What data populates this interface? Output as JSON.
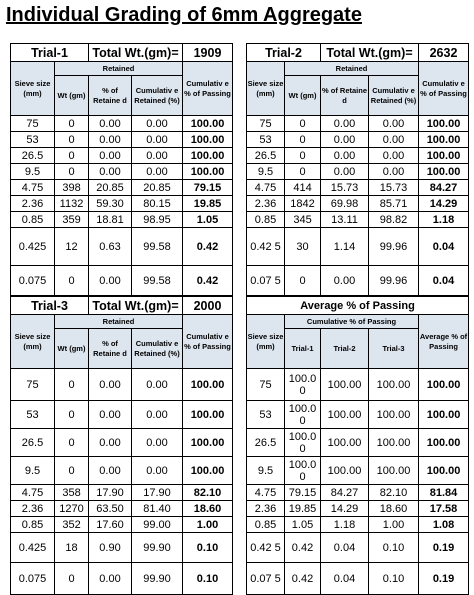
{
  "title": "Individual Grading of 6mm Aggregate",
  "headers": {
    "sieve_size": "Sieve size (mm)",
    "retained": "Retained",
    "wt": "Wt (gm)",
    "pct_retained": "% of Retaine d",
    "cum_retained": "Cumulativ e Retained (%)",
    "cum_passing": "Cumulativ e % of Passing",
    "total_wt_label": "Total Wt.(gm)="
  },
  "trial1": {
    "label": "Trial-1",
    "total": "1909",
    "rows": [
      [
        "75",
        "0",
        "0.00",
        "0.00",
        "100.00"
      ],
      [
        "53",
        "0",
        "0.00",
        "0.00",
        "100.00"
      ],
      [
        "26.5",
        "0",
        "0.00",
        "0.00",
        "100.00"
      ],
      [
        "9.5",
        "0",
        "0.00",
        "0.00",
        "100.00"
      ],
      [
        "4.75",
        "398",
        "20.85",
        "20.85",
        "79.15"
      ],
      [
        "2.36",
        "1132",
        "59.30",
        "80.15",
        "19.85"
      ],
      [
        "0.85",
        "359",
        "18.81",
        "98.95",
        "1.05"
      ],
      [
        "0.425",
        "12",
        "0.63",
        "99.58",
        "0.42"
      ],
      [
        "0.075",
        "0",
        "0.00",
        "99.58",
        "0.42"
      ]
    ]
  },
  "trial2": {
    "label": "Trial-2",
    "total": "2632",
    "rows": [
      [
        "75",
        "0",
        "0.00",
        "0.00",
        "100.00"
      ],
      [
        "53",
        "0",
        "0.00",
        "0.00",
        "100.00"
      ],
      [
        "26.5",
        "0",
        "0.00",
        "0.00",
        "100.00"
      ],
      [
        "9.5",
        "0",
        "0.00",
        "0.00",
        "100.00"
      ],
      [
        "4.75",
        "414",
        "15.73",
        "15.73",
        "84.27"
      ],
      [
        "2.36",
        "1842",
        "69.98",
        "85.71",
        "14.29"
      ],
      [
        "0.85",
        "345",
        "13.11",
        "98.82",
        "1.18"
      ],
      [
        "0.42 5",
        "30",
        "1.14",
        "99.96",
        "0.04"
      ],
      [
        "0.07 5",
        "0",
        "0.00",
        "99.96",
        "0.04"
      ]
    ]
  },
  "trial3": {
    "label": "Trial-3",
    "total": "2000",
    "rows": [
      [
        "75",
        "0",
        "0.00",
        "0.00",
        "100.00"
      ],
      [
        "53",
        "0",
        "0.00",
        "0.00",
        "100.00"
      ],
      [
        "26.5",
        "0",
        "0.00",
        "0.00",
        "100.00"
      ],
      [
        "9.5",
        "0",
        "0.00",
        "0.00",
        "100.00"
      ],
      [
        "4.75",
        "358",
        "17.90",
        "17.90",
        "82.10"
      ],
      [
        "2.36",
        "1270",
        "63.50",
        "81.40",
        "18.60"
      ],
      [
        "0.85",
        "352",
        "17.60",
        "99.00",
        "1.00"
      ],
      [
        "0.425",
        "18",
        "0.90",
        "99.90",
        "0.10"
      ],
      [
        "0.075",
        "0",
        "0.00",
        "99.90",
        "0.10"
      ]
    ]
  },
  "average": {
    "label": "Average % of Passing",
    "cum_passing": "Cumulative % of Passing",
    "trial1": "Trial-1",
    "trial2": "Trial-2",
    "trial3": "Trial-3",
    "avg": "Average % of Passing",
    "rows": [
      [
        "75",
        "100.0 0",
        "100.00",
        "100.00",
        "100.00"
      ],
      [
        "53",
        "100.0 0",
        "100.00",
        "100.00",
        "100.00"
      ],
      [
        "26.5",
        "100.0 0",
        "100.00",
        "100.00",
        "100.00"
      ],
      [
        "9.5",
        "100.0 0",
        "100.00",
        "100.00",
        "100.00"
      ],
      [
        "4.75",
        "79.15",
        "84.27",
        "82.10",
        "81.84"
      ],
      [
        "2.36",
        "19.85",
        "14.29",
        "18.60",
        "17.58"
      ],
      [
        "0.85",
        "1.05",
        "1.18",
        "1.00",
        "1.08"
      ],
      [
        "0.42 5",
        "0.42",
        "0.04",
        "0.10",
        "0.19"
      ],
      [
        "0.07 5",
        "0.42",
        "0.04",
        "0.10",
        "0.19"
      ]
    ]
  }
}
